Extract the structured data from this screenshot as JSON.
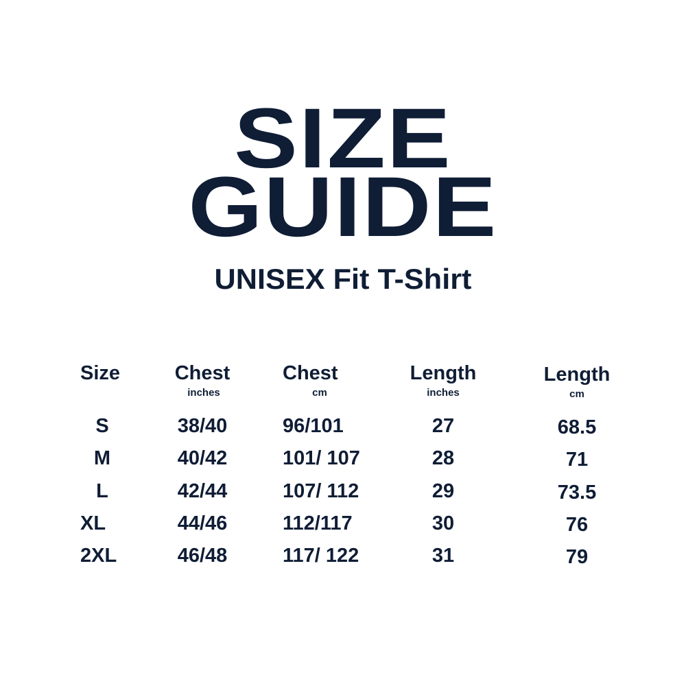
{
  "title": {
    "line1": "SIZE",
    "line2": "GUIDE"
  },
  "subtitle": "UNISEX Fit T-Shirt",
  "table": {
    "headers": [
      {
        "label": "Size",
        "unit": ""
      },
      {
        "label": "Chest",
        "unit": "inches"
      },
      {
        "label": "Chest",
        "unit": "cm"
      },
      {
        "label": "Length",
        "unit": "inches"
      },
      {
        "label": "Length",
        "unit": "cm"
      }
    ],
    "rows": [
      [
        "S",
        "38/40",
        "96/101",
        "27",
        "68.5"
      ],
      [
        "M",
        "40/42",
        "101/ 107",
        "28",
        "71"
      ],
      [
        "L",
        "42/44",
        "107/ 112",
        "29",
        "73.5"
      ],
      [
        "XL",
        "44/46",
        "112/117",
        "30",
        "76"
      ],
      [
        "2XL",
        "46/48",
        "117/ 122",
        "31",
        "79"
      ]
    ]
  },
  "colors": {
    "text": "#0f1d35",
    "background": "#ffffff"
  }
}
